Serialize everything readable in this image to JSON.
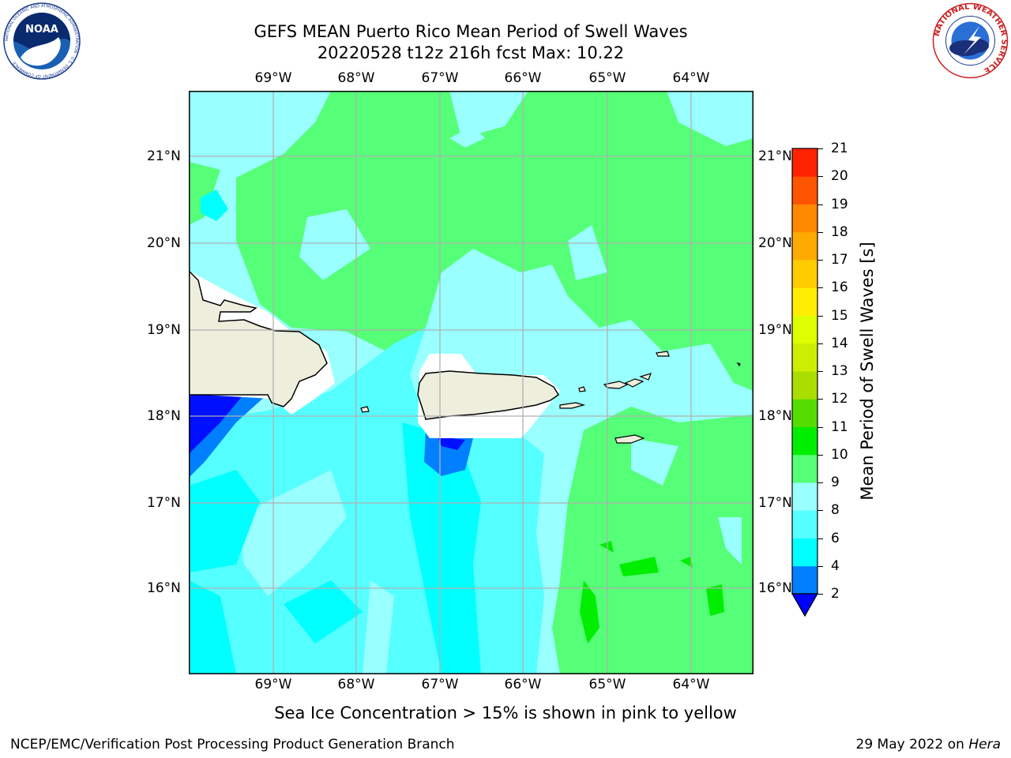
{
  "header": {
    "line1": "GEFS MEAN Puerto Rico Mean Period of Swell Waves",
    "line2": "20220528 t12z 216h fcst   Max: 10.22"
  },
  "map": {
    "lon_labels": [
      "69°W",
      "68°W",
      "67°W",
      "66°W",
      "65°W",
      "64°W"
    ],
    "lat_labels": [
      "21°N",
      "20°N",
      "19°N",
      "18°N",
      "17°N",
      "16°N"
    ],
    "colors": {
      "ocean_cyan": "#00ffff",
      "light_cyan": "#99ffff",
      "green": "#55ff77",
      "bright_green": "#00ee00",
      "blue": "#0080ff",
      "dark_blue": "#0010ff",
      "land": "#eeeedd",
      "grid": "#b0b0b0"
    }
  },
  "colorbar": {
    "title": "Mean Period of Swell Waves [s]",
    "ticks": [
      "2",
      "4",
      "6",
      "8",
      "9",
      "10",
      "11",
      "12",
      "13",
      "14",
      "15",
      "16",
      "17",
      "18",
      "19",
      "20",
      "21"
    ],
    "colors": [
      "#0000ff",
      "#0080ff",
      "#00ffff",
      "#55ffff",
      "#99ffff",
      "#55ff77",
      "#00ee00",
      "#55dd00",
      "#aadd00",
      "#ccee00",
      "#ddff00",
      "#ffee00",
      "#ffcc00",
      "#ffaa00",
      "#ff8800",
      "#ff5500",
      "#ff2200",
      "#ff0000"
    ]
  },
  "footer": {
    "note": "Sea Ice Concentration > 15% is shown in pink to yellow",
    "credit": "NCEP/EMC/Verification Post Processing Product Generation Branch",
    "date_prefix": "29 May 2022 on ",
    "date_host": "Hera"
  },
  "logos": {
    "noaa_text": "NOAA",
    "noaa_ring": "NATIONAL OCEANIC AND ATMOSPHERIC ADMINISTRATION · U.S. DEPARTMENT OF COMMERCE",
    "nws_ring": "NATIONAL WEATHER SERVICE"
  }
}
